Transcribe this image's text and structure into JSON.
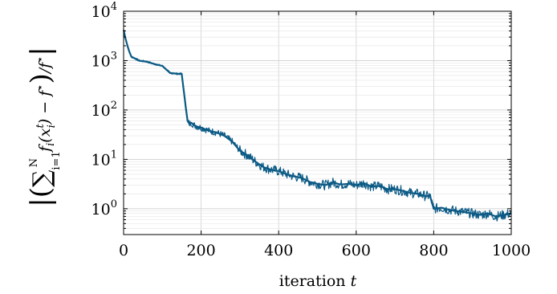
{
  "chart_data": {
    "type": "line",
    "title": "",
    "xlabel": "iteration",
    "xlabel_var": "t",
    "ylabel": "| ( Σ_{i=1}^{N} f_i(x_i^t) − f* ) / f* |",
    "ylabel_parts": {
      "bar": "|",
      "lparen": "(",
      "sigma": "∑",
      "sub": "i=1",
      "sup": "N",
      "body": "f",
      "body_sub": "i",
      "arg_open": "(x",
      "arg_sup": "t",
      "arg_sub": "i",
      "arg_close": ") − f",
      "star": "⋆",
      "rparen": ")",
      "div": "/f",
      "star2": "⋆",
      "bar2": "|"
    },
    "xlim": [
      0,
      1000
    ],
    "ylim": [
      0.3,
      10000
    ],
    "yscale": "log",
    "xticks": [
      0,
      200,
      400,
      600,
      800,
      1000
    ],
    "xtick_labels": [
      "0",
      "200",
      "400",
      "600",
      "800",
      "1000"
    ],
    "yticks": [
      1,
      10,
      100,
      1000,
      10000
    ],
    "ytick_labels": [
      {
        "base": "10",
        "exp": "0"
      },
      {
        "base": "10",
        "exp": "1"
      },
      {
        "base": "10",
        "exp": "2"
      },
      {
        "base": "10",
        "exp": "3"
      },
      {
        "base": "10",
        "exp": "4"
      }
    ],
    "grid": true,
    "legend": "none",
    "series": [
      {
        "color": "#0b5a85",
        "x": [
          0,
          5,
          10,
          15,
          20,
          30,
          40,
          60,
          80,
          100,
          120,
          140,
          150,
          155,
          160,
          165,
          170,
          175,
          180,
          190,
          200,
          220,
          240,
          260,
          280,
          300,
          320,
          340,
          360,
          380,
          400,
          420,
          440,
          460,
          480,
          500,
          520,
          540,
          560,
          580,
          600,
          620,
          640,
          660,
          680,
          700,
          720,
          740,
          760,
          780,
          790,
          800,
          820,
          840,
          860,
          880,
          900,
          920,
          940,
          960,
          980,
          1000
        ],
        "y": [
          4200,
          2800,
          2000,
          1500,
          1200,
          1100,
          1000,
          950,
          850,
          780,
          560,
          540,
          540,
          250,
          120,
          60,
          52,
          55,
          50,
          46,
          44,
          38,
          35,
          30,
          23,
          15,
          12,
          9.0,
          7.0,
          6.2,
          5.8,
          5.0,
          4.5,
          4.2,
          3.5,
          3.2,
          3.0,
          3.4,
          3.1,
          3.2,
          3.0,
          3.3,
          2.8,
          2.9,
          2.5,
          2.5,
          2.3,
          2.1,
          2.0,
          1.8,
          1.85,
          1.0,
          1.05,
          0.95,
          0.9,
          0.85,
          0.8,
          0.75,
          0.8,
          0.7,
          0.75,
          0.8
        ]
      }
    ]
  }
}
